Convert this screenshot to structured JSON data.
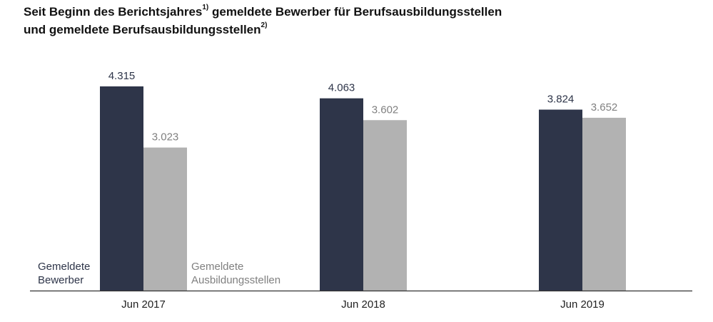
{
  "title": {
    "line1_a": "Seit Beginn des Berichtsjahres",
    "line1_sup": "1)",
    "line1_b": " gemeldete Bewerber für Berufsausbildungsstellen",
    "line2_a": "und gemeldete Berufsausbildungsstellen",
    "line2_sup": "2)"
  },
  "chart_data": {
    "type": "bar",
    "categories": [
      "Jun 2017",
      "Jun 2018",
      "Jun 2019"
    ],
    "series": [
      {
        "name": "Gemeldete Bewerber",
        "label_lines": [
          "Gemeldete",
          "Bewerber"
        ],
        "values": [
          4315,
          4063,
          3824
        ],
        "value_labels": [
          "4.315",
          "4.063",
          "3.824"
        ],
        "color": "#2e3549",
        "label_color": "#2e3549"
      },
      {
        "name": "Gemeldete Ausbildungsstellen",
        "label_lines": [
          "Gemeldete",
          "Ausbildungsstellen"
        ],
        "values": [
          3023,
          3602,
          3652
        ],
        "value_labels": [
          "3.023",
          "3.602",
          "3.652"
        ],
        "color": "#b2b2b2",
        "label_color": "#808080"
      }
    ],
    "ylim": [
      0,
      4315
    ],
    "grid": false,
    "legend": "bottom-left, inside plot"
  }
}
